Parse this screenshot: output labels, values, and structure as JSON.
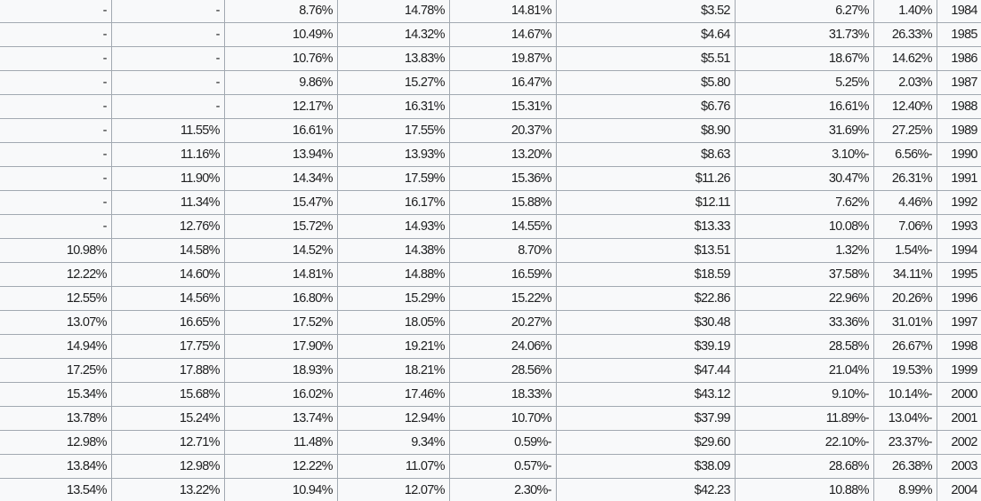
{
  "colors": {
    "cell_background": "#f8f9fa",
    "border": "#a2a9b1",
    "text": "#202122",
    "page_background": "#ffffff"
  },
  "table": {
    "rows": [
      [
        "-",
        "-",
        "8.76%",
        "14.78%",
        "14.81%",
        "$3.52",
        "6.27%",
        "1.40%",
        "1984"
      ],
      [
        "-",
        "-",
        "10.49%",
        "14.32%",
        "14.67%",
        "$4.64",
        "31.73%",
        "26.33%",
        "1985"
      ],
      [
        "-",
        "-",
        "10.76%",
        "13.83%",
        "19.87%",
        "$5.51",
        "18.67%",
        "14.62%",
        "1986"
      ],
      [
        "-",
        "-",
        "9.86%",
        "15.27%",
        "16.47%",
        "$5.80",
        "5.25%",
        "2.03%",
        "1987"
      ],
      [
        "-",
        "-",
        "12.17%",
        "16.31%",
        "15.31%",
        "$6.76",
        "16.61%",
        "12.40%",
        "1988"
      ],
      [
        "-",
        "11.55%",
        "16.61%",
        "17.55%",
        "20.37%",
        "$8.90",
        "31.69%",
        "27.25%",
        "1989"
      ],
      [
        "-",
        "11.16%",
        "13.94%",
        "13.93%",
        "13.20%",
        "$8.63",
        "3.10%-",
        "6.56%-",
        "1990"
      ],
      [
        "-",
        "11.90%",
        "14.34%",
        "17.59%",
        "15.36%",
        "$11.26",
        "30.47%",
        "26.31%",
        "1991"
      ],
      [
        "-",
        "11.34%",
        "15.47%",
        "16.17%",
        "15.88%",
        "$12.11",
        "7.62%",
        "4.46%",
        "1992"
      ],
      [
        "-",
        "12.76%",
        "15.72%",
        "14.93%",
        "14.55%",
        "$13.33",
        "10.08%",
        "7.06%",
        "1993"
      ],
      [
        "10.98%",
        "14.58%",
        "14.52%",
        "14.38%",
        "8.70%",
        "$13.51",
        "1.32%",
        "1.54%-",
        "1994"
      ],
      [
        "12.22%",
        "14.60%",
        "14.81%",
        "14.88%",
        "16.59%",
        "$18.59",
        "37.58%",
        "34.11%",
        "1995"
      ],
      [
        "12.55%",
        "14.56%",
        "16.80%",
        "15.29%",
        "15.22%",
        "$22.86",
        "22.96%",
        "20.26%",
        "1996"
      ],
      [
        "13.07%",
        "16.65%",
        "17.52%",
        "18.05%",
        "20.27%",
        "$30.48",
        "33.36%",
        "31.01%",
        "1997"
      ],
      [
        "14.94%",
        "17.75%",
        "17.90%",
        "19.21%",
        "24.06%",
        "$39.19",
        "28.58%",
        "26.67%",
        "1998"
      ],
      [
        "17.25%",
        "17.88%",
        "18.93%",
        "18.21%",
        "28.56%",
        "$47.44",
        "21.04%",
        "19.53%",
        "1999"
      ],
      [
        "15.34%",
        "15.68%",
        "16.02%",
        "17.46%",
        "18.33%",
        "$43.12",
        "9.10%-",
        "10.14%-",
        "2000"
      ],
      [
        "13.78%",
        "15.24%",
        "13.74%",
        "12.94%",
        "10.70%",
        "$37.99",
        "11.89%-",
        "13.04%-",
        "2001"
      ],
      [
        "12.98%",
        "12.71%",
        "11.48%",
        "9.34%",
        "0.59%-",
        "$29.60",
        "22.10%-",
        "23.37%-",
        "2002"
      ],
      [
        "13.84%",
        "12.98%",
        "12.22%",
        "11.07%",
        "0.57%-",
        "$38.09",
        "28.68%",
        "26.38%",
        "2003"
      ],
      [
        "13.54%",
        "13.22%",
        "10.94%",
        "12.07%",
        "2.30%-",
        "$42.23",
        "10.88%",
        "8.99%",
        "2004"
      ]
    ]
  }
}
